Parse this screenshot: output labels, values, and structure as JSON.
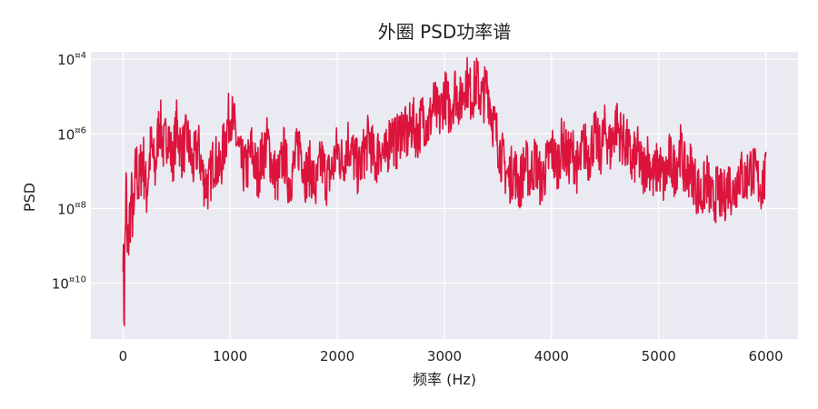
{
  "chart_data": {
    "type": "line",
    "title": "外圈 PSD功率谱",
    "xlabel": "频率 (Hz)",
    "ylabel": "PSD",
    "x_scale": "linear",
    "y_scale": "log",
    "xlim": [
      -300,
      6300
    ],
    "ylim_exponent": [
      -11.5,
      -3.8
    ],
    "x_ticks": [
      0,
      1000,
      2000,
      3000,
      4000,
      5000,
      6000
    ],
    "x_tick_labels": [
      "0",
      "1000",
      "2000",
      "3000",
      "4000",
      "5000",
      "6000"
    ],
    "y_ticks_exponent": [
      -4,
      -6,
      -8,
      -10
    ],
    "y_tick_labels": [
      {
        "base": "10",
        "exp": "¤4"
      },
      {
        "base": "10",
        "exp": "¤6"
      },
      {
        "base": "10",
        "exp": "¤8"
      },
      {
        "base": "10",
        "exp": "¤10"
      }
    ],
    "grid": true,
    "background": "#eaeaf2",
    "series": [
      {
        "color": "#dc143c",
        "x": [
          0,
          10,
          20,
          30,
          40,
          60,
          80,
          100,
          120,
          150,
          180,
          220,
          260,
          300,
          340,
          380,
          420,
          460,
          500,
          550,
          600,
          650,
          700,
          750,
          800,
          850,
          900,
          950,
          1000,
          1050,
          1100,
          1150,
          1200,
          1250,
          1300,
          1350,
          1400,
          1450,
          1500,
          1550,
          1600,
          1650,
          1700,
          1750,
          1800,
          1850,
          1900,
          1950,
          2000,
          2050,
          2100,
          2150,
          2200,
          2250,
          2300,
          2350,
          2400,
          2450,
          2500,
          2550,
          2600,
          2650,
          2700,
          2750,
          2800,
          2850,
          2900,
          2950,
          3000,
          3050,
          3100,
          3150,
          3200,
          3250,
          3300,
          3350,
          3400,
          3450,
          3500,
          3550,
          3600,
          3650,
          3700,
          3750,
          3800,
          3850,
          3900,
          3950,
          4000,
          4050,
          4100,
          4150,
          4200,
          4250,
          4300,
          4350,
          4400,
          4450,
          4500,
          4550,
          4600,
          4650,
          4700,
          4750,
          4800,
          4850,
          4900,
          4950,
          5000,
          5050,
          5100,
          5150,
          5200,
          5250,
          5300,
          5350,
          5400,
          5450,
          5500,
          5550,
          5600,
          5650,
          5700,
          5750,
          5800,
          5850,
          5900,
          5950,
          6000
        ],
        "y_exponent": [
          -8.8,
          -11.1,
          -8.7,
          -7.2,
          -9.5,
          -8.3,
          -7.8,
          -8.5,
          -6.8,
          -7.4,
          -6.5,
          -7.6,
          -6.3,
          -7.0,
          -5.6,
          -6.4,
          -5.9,
          -6.8,
          -5.8,
          -6.5,
          -6.1,
          -6.9,
          -6.3,
          -7.2,
          -7.4,
          -6.6,
          -7.0,
          -6.2,
          -5.4,
          -6.0,
          -6.8,
          -7.0,
          -6.4,
          -7.1,
          -6.6,
          -6.2,
          -7.0,
          -7.2,
          -6.5,
          -7.3,
          -6.8,
          -6.2,
          -7.1,
          -6.9,
          -7.5,
          -6.7,
          -7.2,
          -7.0,
          -6.4,
          -6.8,
          -6.2,
          -6.6,
          -7.0,
          -6.5,
          -6.1,
          -6.8,
          -6.3,
          -6.7,
          -5.9,
          -6.3,
          -5.8,
          -6.1,
          -5.7,
          -6.0,
          -5.5,
          -5.8,
          -5.2,
          -5.6,
          -4.9,
          -5.4,
          -4.8,
          -5.2,
          -4.5,
          -5.0,
          -4.6,
          -5.1,
          -4.7,
          -5.6,
          -6.2,
          -6.8,
          -7.2,
          -6.9,
          -7.4,
          -6.8,
          -7.1,
          -6.7,
          -7.3,
          -6.9,
          -6.4,
          -6.9,
          -6.2,
          -6.7,
          -6.5,
          -7.0,
          -6.3,
          -6.6,
          -6.0,
          -6.5,
          -5.9,
          -6.4,
          -5.7,
          -6.1,
          -6.3,
          -6.8,
          -6.5,
          -7.0,
          -6.6,
          -7.2,
          -6.8,
          -7.3,
          -6.7,
          -7.0,
          -6.4,
          -7.1,
          -6.9,
          -7.4,
          -7.7,
          -7.2,
          -7.9,
          -7.5,
          -7.8,
          -7.3,
          -7.6,
          -7.0,
          -7.3,
          -6.9,
          -7.1,
          -7.4,
          -7.2
        ]
      }
    ]
  }
}
